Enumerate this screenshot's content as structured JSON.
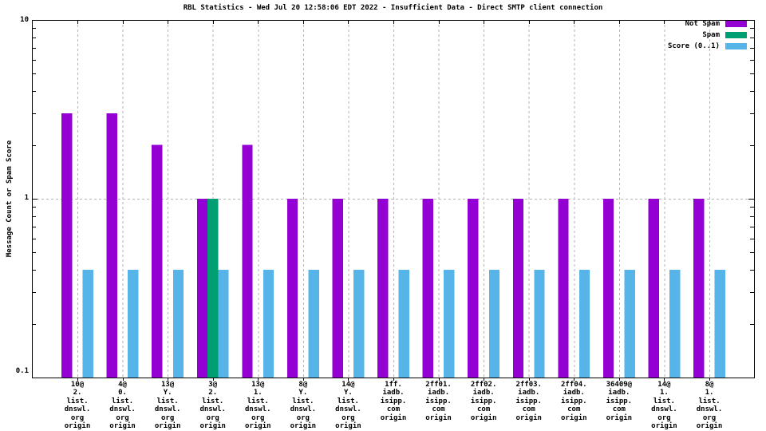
{
  "window": {
    "background": "#ffffff"
  },
  "chart_data": {
    "type": "bar",
    "title": "RBL Statistics - Wed Jul 20 12:58:06 EDT 2022 - Insufficient Data - Direct SMTP client connection",
    "ylabel": "Message Count or Spam Score",
    "xlabel": "",
    "y_scale": "log",
    "ylim": [
      0.1,
      10
    ],
    "y_major_ticks": [
      {
        "value": 10,
        "label": "10"
      },
      {
        "value": 1,
        "label": "1"
      },
      {
        "value": 0.1,
        "label": "0.1"
      }
    ],
    "grid": {
      "horizontal_at": [
        1
      ],
      "vertical_at_each_category": true,
      "style": "dashed-gray"
    },
    "legend_position": "top-right-inside",
    "categories": [
      [
        "10@",
        "2.",
        "list.",
        "dnswl.",
        "org",
        "origin"
      ],
      [
        "4@",
        "0.",
        "list.",
        "dnswl.",
        "org",
        "origin"
      ],
      [
        "13@",
        "Y.",
        "list.",
        "dnswl.",
        "org",
        "origin"
      ],
      [
        "3@",
        "2.",
        "list.",
        "dnswl.",
        "org",
        "origin"
      ],
      [
        "13@",
        "1.",
        "list.",
        "dnswl.",
        "org",
        "origin"
      ],
      [
        "8@",
        "Y.",
        "list.",
        "dnswl.",
        "org",
        "origin"
      ],
      [
        "14@",
        "Y.",
        "list.",
        "dnswl.",
        "org",
        "origin"
      ],
      [
        "1ff.",
        "iadb.",
        "isipp.",
        "com",
        "origin"
      ],
      [
        "2ff01.",
        "iadb.",
        "isipp.",
        "com",
        "origin"
      ],
      [
        "2ff02.",
        "iadb.",
        "isipp.",
        "com",
        "origin"
      ],
      [
        "2ff03.",
        "iadb.",
        "isipp.",
        "com",
        "origin"
      ],
      [
        "2ff04.",
        "iadb.",
        "isipp.",
        "com",
        "origin"
      ],
      [
        "36409@",
        "iadb.",
        "isipp.",
        "com",
        "origin"
      ],
      [
        "14@",
        "1.",
        "list.",
        "dnswl.",
        "org",
        "origin"
      ],
      [
        "8@",
        "1.",
        "list.",
        "dnswl.",
        "org",
        "origin"
      ]
    ],
    "series": [
      {
        "name": "Not Spam",
        "color": "#9400d3",
        "values": [
          3,
          3,
          2,
          1,
          2,
          1,
          1,
          1,
          1,
          1,
          1,
          1,
          1,
          1,
          1
        ]
      },
      {
        "name": "Spam",
        "color": "#009e73",
        "values": [
          0,
          0,
          0,
          1,
          0,
          0,
          0,
          0,
          0,
          0,
          0,
          0,
          0,
          0,
          0
        ]
      },
      {
        "name": "Score (0..1)",
        "color": "#56b4e9",
        "values": [
          0.4,
          0.4,
          0.4,
          0.4,
          0.4,
          0.4,
          0.4,
          0.4,
          0.4,
          0.4,
          0.4,
          0.4,
          0.4,
          0.4,
          0.4
        ]
      }
    ],
    "colors": {
      "axis": "#000000",
      "gridline": "#b3b3b3",
      "text": "#000000"
    }
  }
}
